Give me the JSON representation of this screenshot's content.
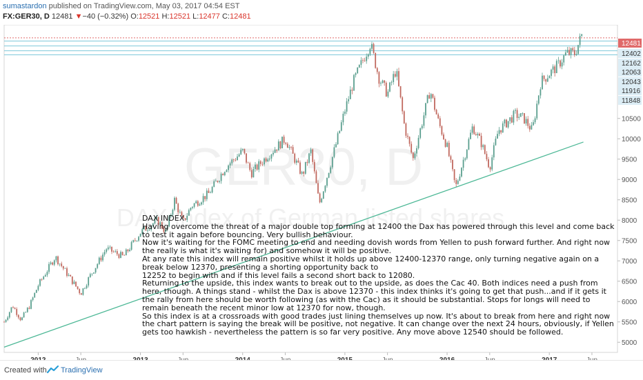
{
  "header": {
    "author": "sumastardon",
    "published": "published on TradingView.com, May 03, 2017 04:54 EST",
    "symbol": "FX:GER30, D",
    "last": "12481",
    "change_arrow": "▼",
    "change": "−40 (−0.32%)",
    "o_label": "O:",
    "o_value": "12521",
    "h_label": "H:",
    "h_value": "12521",
    "l_label": "L:",
    "l_value": "12477",
    "c_label": "C:",
    "c_value": "12481"
  },
  "watermark": {
    "symbol": "GER30, D",
    "description": "DAX index of German listed shares"
  },
  "note": {
    "title": "DAX INDEX",
    "paragraphs": [
      "Having overcome the threat of a major double top forming at 12400 the Dax has powered through this level and come back to test it again before bouncing. Very bullish behaviour.",
      "Now it's waiting for the FOMC meeting to end and needing dovish words from Yellen to push forward further. And right now the really is what it's waiting for) and somehow it will be positive.",
      "At any rate this index will remain positive whilst it holds up above 12400-12370 range, only turning negative again on a break below 12370, presenting a shorting opportunity back to",
      "12252 to begin with and if this level fails a second short back to 12080.",
      "Returning to the upside, this index wants to break out to the upside, as does the Cac 40. Both indices need a push from here, though. A things stand - whilst the Dax is above 12370 - this index thinks it's going to get that push...and if it gets it the rally from here should be worth following (as with the Cac) as it should be substantial. Stops for longs will need to remain beneath the recent minor low at 12370 for now, though.",
      "So this index is at a crossroads with good trades just lining themselves up now. It's about to break from here and right now the chart pattern is saying the break will be positive, not negative. It can change over the next 24 hours, obviously, if Yellen gets too hawkish - nevertheless the pattern is so far very positive. Any move above 12540 should be followed."
    ]
  },
  "footer": {
    "created_with": "Created with",
    "brand": "TradingView"
  },
  "colors": {
    "candle_up": "#5a9e8e",
    "candle_down": "#c0685e",
    "trendline": "#4db896",
    "level_line": "#7ec8da",
    "last_line": "#e06a6a",
    "label_bg": "#dcedf5"
  },
  "chart_data": {
    "type": "candlestick",
    "title": "",
    "x_ticks": [
      "2012",
      "Jun",
      "2013",
      "Jun",
      "2014",
      "Jun",
      "2015",
      "Jun",
      "2016",
      "Jun",
      "2017",
      "Jun"
    ],
    "x_tick_dates": [
      "2012-01",
      "2012-06",
      "2013-01",
      "2013-06",
      "2014-01",
      "2014-06",
      "2015-01",
      "2015-06",
      "2016-01",
      "2016-06",
      "2017-01",
      "2017-06"
    ],
    "y_ticks": [
      5000,
      5500,
      6000,
      6500,
      7000,
      7500,
      8000,
      8500,
      9000,
      9500,
      10000,
      10500
    ],
    "ylim": [
      4750,
      12800
    ],
    "xlim": [
      "2011-09",
      "2017-09"
    ],
    "price_labels": [
      {
        "value": 12481,
        "role": "last"
      },
      {
        "value": 12402,
        "role": "level"
      },
      {
        "value": 12162,
        "role": "level"
      },
      {
        "value": 12063,
        "role": "level"
      },
      {
        "value": 12043,
        "role": "level"
      },
      {
        "value": 11916,
        "role": "level"
      },
      {
        "value": 11848,
        "role": "level"
      }
    ],
    "horizontal_levels": [
      12481,
      12402,
      12280,
      12162,
      12063
    ],
    "trendline": {
      "from": {
        "date": "2011-09",
        "value": 4880
      },
      "to": {
        "date": "2017-05",
        "value": 9920
      }
    },
    "price_path": [
      [
        "2011-09",
        5500
      ],
      [
        "2011-10",
        5900
      ],
      [
        "2011-11",
        5550
      ],
      [
        "2011-12",
        5900
      ],
      [
        "2012-01",
        6400
      ],
      [
        "2012-03",
        7100
      ],
      [
        "2012-04",
        6800
      ],
      [
        "2012-06",
        6200
      ],
      [
        "2012-07",
        6600
      ],
      [
        "2012-09",
        7300
      ],
      [
        "2012-11",
        7100
      ],
      [
        "2013-01",
        7700
      ],
      [
        "2013-03",
        8000
      ],
      [
        "2013-04",
        7700
      ],
      [
        "2013-05",
        8500
      ],
      [
        "2013-06",
        7950
      ],
      [
        "2013-07",
        8350
      ],
      [
        "2013-09",
        8650
      ],
      [
        "2013-11",
        9300
      ],
      [
        "2014-01",
        9700
      ],
      [
        "2014-02",
        9150
      ],
      [
        "2014-04",
        9600
      ],
      [
        "2014-06",
        10000
      ],
      [
        "2014-08",
        9100
      ],
      [
        "2014-09",
        9700
      ],
      [
        "2014-10",
        8400
      ],
      [
        "2014-12",
        9900
      ],
      [
        "2015-01",
        10700
      ],
      [
        "2015-02",
        11400
      ],
      [
        "2015-04",
        12350
      ],
      [
        "2015-05",
        11500
      ],
      [
        "2015-06",
        11100
      ],
      [
        "2015-07",
        11700
      ],
      [
        "2015-08",
        10300
      ],
      [
        "2015-09",
        9500
      ],
      [
        "2015-11",
        11200
      ],
      [
        "2015-12",
        10400
      ],
      [
        "2016-01",
        9800
      ],
      [
        "2016-02",
        8800
      ],
      [
        "2016-04",
        10300
      ],
      [
        "2016-05",
        9900
      ],
      [
        "2016-06",
        9300
      ],
      [
        "2016-07",
        10200
      ],
      [
        "2016-09",
        10600
      ],
      [
        "2016-10",
        10500
      ],
      [
        "2016-11",
        10200
      ],
      [
        "2016-12",
        11400
      ],
      [
        "2017-01",
        11600
      ],
      [
        "2017-02",
        11800
      ],
      [
        "2017-03",
        12100
      ],
      [
        "2017-04",
        12100
      ],
      [
        "2017-05",
        12650
      ]
    ]
  }
}
